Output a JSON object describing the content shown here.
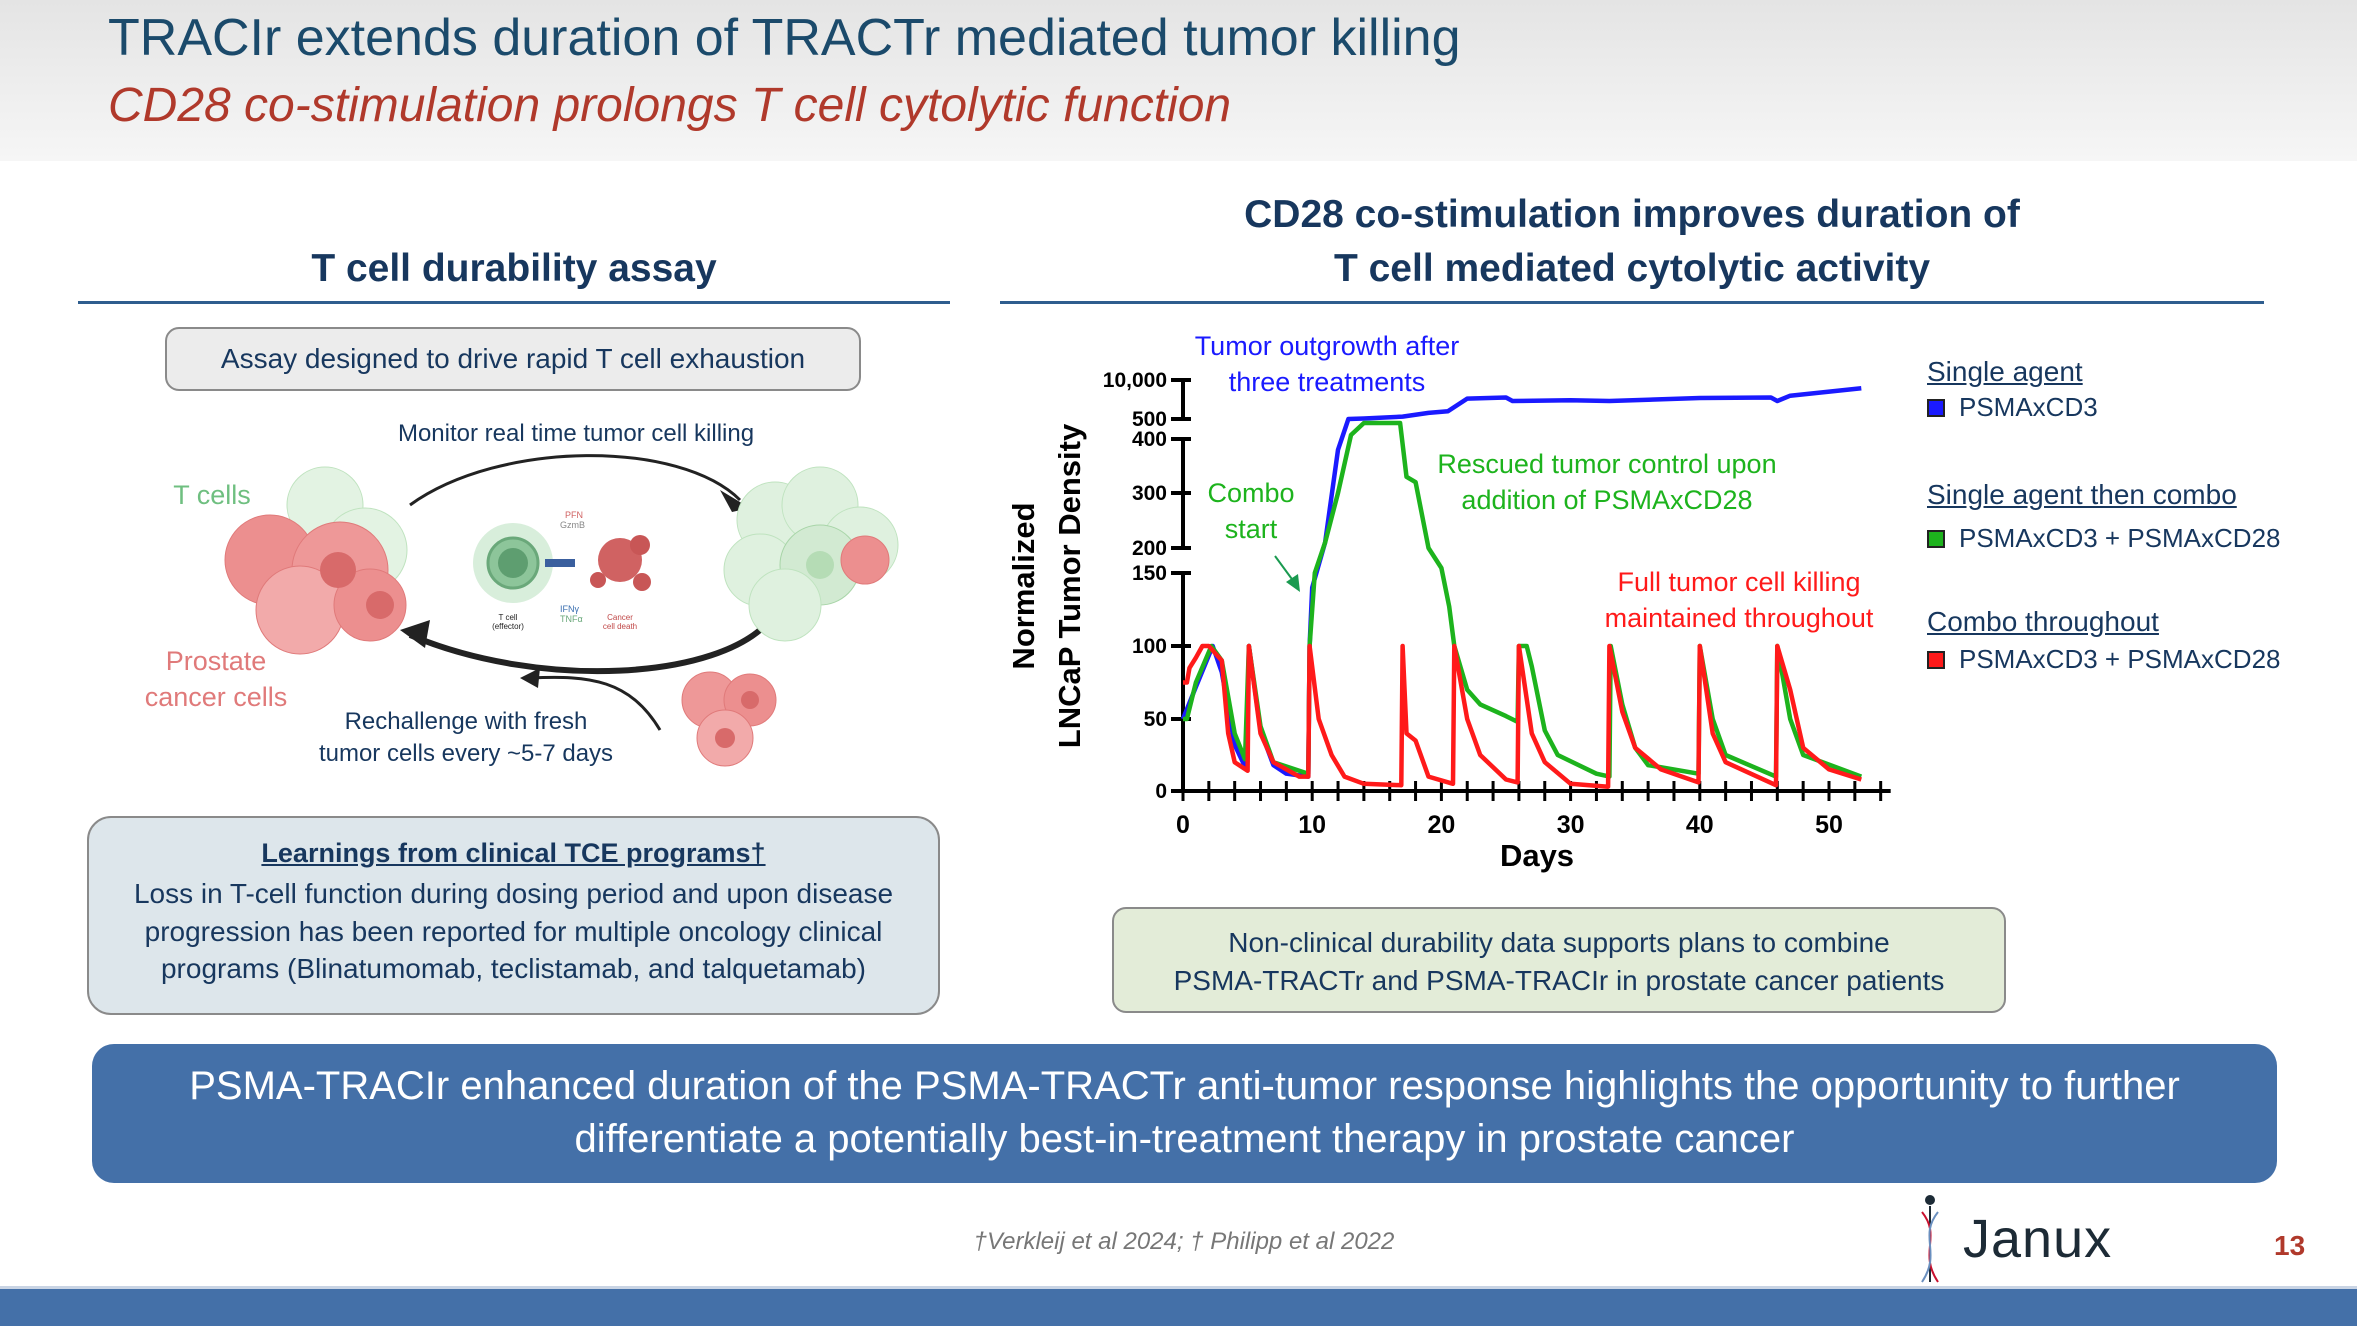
{
  "header": {
    "title": "TRACIr extends duration of TRACTr mediated tumor killing",
    "subtitle": "CD28 co-stimulation prolongs T cell cytolytic function"
  },
  "left": {
    "heading": "T cell durability assay",
    "assay_box": "Assay designed to drive rapid T cell exhaustion",
    "diagram": {
      "monitor": "Monitor real time tumor cell killing",
      "t_cells": "T cells",
      "prostate_1": "Prostate",
      "prostate_2": "cancer cells",
      "rechallenge_1": "Rechallenge with fresh",
      "rechallenge_2": "tumor cells every ~5-7 days",
      "pfn": "PFN",
      "gzmb": "GzmB",
      "ifng": "IFNγ",
      "tnfa": "TNFα",
      "tcell_1": "T cell",
      "tcell_2": "(effector)",
      "death_1": "Cancer",
      "death_2": "cell death"
    },
    "learnings": {
      "title": "Learnings from clinical TCE programs†",
      "lines": [
        "Loss in T-cell function during dosing period and upon disease",
        "progression has been reported for multiple oncology clinical",
        "programs (Blinatumomab, teclistamab, and talquetamab)"
      ]
    }
  },
  "right": {
    "heading_1": "CD28 co-stimulation improves duration of",
    "heading_2": "T cell mediated cytolytic activity",
    "legend": {
      "single_agent": "Single agent",
      "single_agent_item": "PSMAxCD3",
      "then_combo": "Single agent then combo",
      "then_combo_item": "PSMAxCD3 + PSMAxCD28",
      "combo_throughout": "Combo throughout",
      "combo_throughout_item": "PSMAxCD3 + PSMAxCD28"
    },
    "note_lines": [
      "Non-clinical durability data supports plans to combine",
      "PSMA-TRACTr and PSMA-TRACIr in prostate cancer patients"
    ]
  },
  "chart_data": {
    "type": "line",
    "xlabel": "Days",
    "ylabel_1": "Normalized",
    "ylabel_2": "LNCaP Tumor Density",
    "xlim": [
      0,
      54
    ],
    "xticks": [
      0,
      10,
      20,
      30,
      40,
      50
    ],
    "yticks": [
      0,
      50,
      100,
      150,
      200,
      300,
      400,
      500,
      10000
    ],
    "ytick_labels": [
      "0",
      "50",
      "100",
      "150",
      "200",
      "300",
      "400",
      "500",
      "10,000"
    ],
    "y_axis_breaks": [
      [
        150,
        200
      ],
      [
        400,
        500
      ]
    ],
    "annotations": {
      "blue_1": "Tumor outgrowth after",
      "blue_2": "three treatments",
      "combo_1": "Combo",
      "combo_2": "start",
      "green_1": "Rescued tumor control upon",
      "green_2": "addition of PSMAxCD28",
      "red_1": "Full tumor cell killing",
      "red_2": "maintained throughout"
    },
    "series": [
      {
        "name": "Single agent: PSMAxCD3",
        "color": "#1a1aff",
        "points": [
          [
            0,
            50
          ],
          [
            1,
            72
          ],
          [
            2.3,
            100
          ],
          [
            3,
            82
          ],
          [
            4,
            32
          ],
          [
            4.9,
            15
          ],
          [
            5.1,
            100
          ],
          [
            6,
            42
          ],
          [
            7,
            18
          ],
          [
            8,
            12
          ],
          [
            9.7,
            10
          ],
          [
            9.8,
            100
          ],
          [
            10,
            140
          ],
          [
            11,
            210
          ],
          [
            12,
            380
          ],
          [
            12.8,
            500
          ],
          [
            14,
            520
          ],
          [
            17,
            600
          ],
          [
            19,
            800
          ],
          [
            20.5,
            900
          ],
          [
            22,
            2400
          ],
          [
            25,
            2600
          ],
          [
            25.5,
            2000
          ],
          [
            30,
            2100
          ],
          [
            33,
            2000
          ],
          [
            40,
            2500
          ],
          [
            45.5,
            2600
          ],
          [
            46,
            2000
          ],
          [
            47,
            3000
          ],
          [
            52.5,
            5300
          ]
        ]
      },
      {
        "name": "Single agent then combo: PSMAxCD3 + PSMAxCD28",
        "color": "#1db31d",
        "points": [
          [
            0,
            50
          ],
          [
            0.3,
            50
          ],
          [
            1,
            75
          ],
          [
            2.2,
            100
          ],
          [
            3,
            90
          ],
          [
            4,
            40
          ],
          [
            4.8,
            22
          ],
          [
            5.1,
            100
          ],
          [
            6,
            45
          ],
          [
            7,
            20
          ],
          [
            9.7,
            12
          ],
          [
            9.8,
            100
          ],
          [
            10.2,
            150
          ],
          [
            11,
            210
          ],
          [
            12,
            300
          ],
          [
            13,
            420
          ],
          [
            14,
            480
          ],
          [
            16.8,
            480
          ],
          [
            17.3,
            330
          ],
          [
            18,
            320
          ],
          [
            19,
            200
          ],
          [
            20,
            160
          ],
          [
            20.6,
            127
          ],
          [
            21,
            100
          ],
          [
            22,
            70
          ],
          [
            23,
            60
          ],
          [
            25,
            52
          ],
          [
            25.9,
            48
          ],
          [
            26,
            100
          ],
          [
            26.6,
            100
          ],
          [
            27,
            86
          ],
          [
            28,
            42
          ],
          [
            29,
            25
          ],
          [
            32,
            12
          ],
          [
            33,
            10
          ],
          [
            33.1,
            100
          ],
          [
            34,
            60
          ],
          [
            35,
            30
          ],
          [
            36,
            18
          ],
          [
            39.9,
            12
          ],
          [
            40,
            100
          ],
          [
            41,
            50
          ],
          [
            42,
            25
          ],
          [
            45.9,
            10
          ],
          [
            46,
            100
          ],
          [
            47,
            50
          ],
          [
            48,
            25
          ],
          [
            52.5,
            10
          ]
        ]
      },
      {
        "name": "Combo throughout: PSMAxCD3 + PSMAxCD28",
        "color": "#ff1a1a",
        "points": [
          [
            0,
            75
          ],
          [
            0.3,
            75
          ],
          [
            0.5,
            85
          ],
          [
            1,
            92
          ],
          [
            1.5,
            100
          ],
          [
            2,
            100
          ],
          [
            3,
            90
          ],
          [
            3.5,
            40
          ],
          [
            4,
            20
          ],
          [
            5,
            14
          ],
          [
            5.1,
            100
          ],
          [
            6,
            40
          ],
          [
            7,
            20
          ],
          [
            9,
            10
          ],
          [
            9.7,
            10
          ],
          [
            9.8,
            100
          ],
          [
            10.5,
            50
          ],
          [
            11.5,
            25
          ],
          [
            12.5,
            10
          ],
          [
            14,
            5
          ],
          [
            16.9,
            4
          ],
          [
            17,
            100
          ],
          [
            17.3,
            40
          ],
          [
            18,
            35
          ],
          [
            19,
            10
          ],
          [
            20.9,
            5
          ],
          [
            21,
            100
          ],
          [
            22,
            50
          ],
          [
            23,
            25
          ],
          [
            25,
            8
          ],
          [
            25.9,
            6
          ],
          [
            26,
            100
          ],
          [
            27,
            40
          ],
          [
            28,
            20
          ],
          [
            30,
            5
          ],
          [
            32.9,
            3
          ],
          [
            33,
            100
          ],
          [
            34,
            55
          ],
          [
            35,
            30
          ],
          [
            37,
            15
          ],
          [
            39.9,
            6
          ],
          [
            40,
            100
          ],
          [
            41,
            40
          ],
          [
            42,
            20
          ],
          [
            45.9,
            4
          ],
          [
            46,
            100
          ],
          [
            47,
            70
          ],
          [
            48,
            30
          ],
          [
            50,
            15
          ],
          [
            52.5,
            8
          ]
        ]
      }
    ]
  },
  "banner": {
    "line_1": "PSMA-TRACIr enhanced duration of the PSMA-TRACTr anti-tumor response highlights the opportunity to further",
    "line_2": "differentiate a potentially best-in-treatment therapy in prostate cancer"
  },
  "footer": {
    "refs": "†Verkleij et al 2024; † Philipp et al 2022",
    "logo": "Janux",
    "page": "13"
  },
  "colors": {
    "blue_series": "#1a1aff",
    "green_series": "#1db31d",
    "red_series": "#ff1a1a",
    "banner": "#4470a8"
  }
}
